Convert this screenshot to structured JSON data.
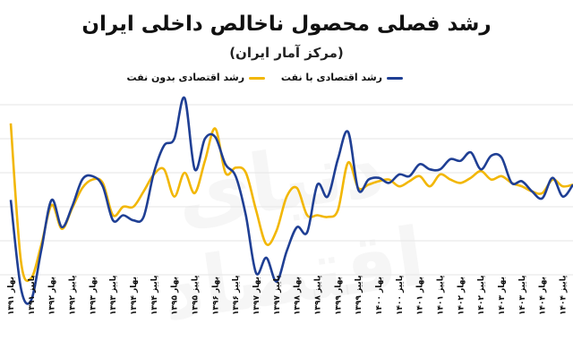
{
  "chart_data": {
    "type": "line",
    "title": "رشد فصلی محصول ناخالص داخلی ایران",
    "subtitle": "(مرکز آمار ایران)",
    "xlabel": "",
    "ylabel": "",
    "grid": true,
    "legend_position": "top",
    "x": [
      "بهار ۱۳۹۱",
      "",
      "پاییز ۱۳۹۱",
      "",
      "بهار ۱۳۹۲",
      "",
      "پاییز ۱۳۹۲",
      "",
      "بهار ۱۳۹۳",
      "",
      "پاییز ۱۳۹۳",
      "",
      "بهار ۱۳۹۴",
      "",
      "پاییز ۱۳۹۴",
      "",
      "بهار ۱۳۹۵",
      "",
      "پاییز ۱۳۹۵",
      "",
      "بهار ۱۳۹۶",
      "",
      "پاییز ۱۳۹۶",
      "",
      "بهار ۱۳۹۷",
      "",
      "پاییز ۱۳۹۷",
      "",
      "بهار ۱۳۹۸",
      "",
      "پاییز ۱۳۹۸",
      "",
      "بهار ۱۳۹۹",
      "",
      "پاییز ۱۳۹۹",
      "",
      "بهار ۱۴۰۰",
      "",
      "پاییز ۱۴۰۰",
      "",
      "بهار ۱۴۰۱",
      "",
      "پاییز ۱۴۰۱",
      "",
      "بهار ۱۴۰۲",
      "",
      "پاییز ۱۴۰۲",
      "",
      "بهار ۱۴۰۳",
      "",
      "پاییز ۱۴۰۳",
      "",
      "بهار ۱۴۰۴",
      "",
      "پاییز ۱۴۰۴",
      ""
    ],
    "tick_labels": [
      "بهار ۱۳۹۱",
      "پاییز ۱۳۹۱",
      "بهار ۱۳۹۲",
      "پاییز ۱۳۹۲",
      "بهار ۱۳۹۳",
      "پاییز ۱۳۹۳",
      "بهار ۱۳۹۴",
      "پاییز ۱۳۹۴",
      "بهار ۱۳۹۵",
      "پاییز ۱۳۹۵",
      "بهار ۱۳۹۶",
      "پاییز ۱۳۹۶",
      "بهار ۱۳۹۷",
      "پاییز ۱۳۹۷",
      "بهار ۱۳۹۸",
      "پاییز ۱۳۹۸",
      "بهار ۱۳۹۹",
      "پاییز ۱۳۹۹",
      "بهار ۱۴۰۰",
      "پاییز ۱۴۰۰",
      "بهار ۱۴۰۱",
      "پاییز ۱۴۰۱",
      "بهار ۱۴۰۲",
      "پاییز ۱۴۰۲",
      "بهار ۱۴۰۳",
      "پاییز ۱۴۰۳",
      "بهار ۱۴۰۴",
      "پاییز ۱۴۰۴"
    ],
    "ylim": [
      -6,
      7
    ],
    "gridlines": [
      -4,
      -2,
      0,
      2,
      4,
      6
    ],
    "series": [
      {
        "name": "رشد اقتصادی با نفت",
        "color": "#1f3f94",
        "values": [
          0.4,
          -4.8,
          -5.5,
          -2.5,
          0.4,
          -1.2,
          0,
          1.6,
          1.8,
          1.2,
          -0.8,
          -0.5,
          -0.8,
          -0.6,
          2,
          3.6,
          4,
          6.4,
          2.2,
          4,
          4.1,
          2.5,
          1.8,
          -0.5,
          -3.9,
          -3,
          -4.4,
          -2.6,
          -1.2,
          -1.5,
          1.3,
          0.6,
          2.8,
          4.4,
          1,
          1.6,
          1.7,
          1.4,
          1.9,
          1.8,
          2.5,
          2.2,
          2.2,
          2.8,
          2.7,
          3.2,
          2.2,
          3,
          2.9,
          1.4,
          1.5,
          0.9,
          0.5,
          1.7,
          0.6,
          1.3
        ]
      },
      {
        "name": "رشد اقتصادی بدون نفت",
        "color": "#f2b705",
        "values": [
          4.9,
          -3.2,
          -4.2,
          -2.2,
          0.1,
          -1.3,
          -0.1,
          1.1,
          1.6,
          1.4,
          -0.5,
          0,
          0,
          0.9,
          1.9,
          2.2,
          0.6,
          2,
          0.8,
          2.7,
          4.6,
          2,
          2.3,
          2,
          -0.2,
          -2.2,
          -1.4,
          0.6,
          1.1,
          -0.5,
          -0.5,
          -0.6,
          -0.2,
          2.6,
          1.1,
          1.3,
          1.5,
          1.6,
          1.2,
          1.5,
          1.8,
          1.2,
          1.9,
          1.6,
          1.4,
          1.7,
          2.1,
          1.6,
          1.8,
          1.4,
          1.2,
          0.9,
          0.8,
          1.6,
          1.2,
          1.3
        ]
      }
    ]
  },
  "watermark_text": "دنیای اقتصاد"
}
